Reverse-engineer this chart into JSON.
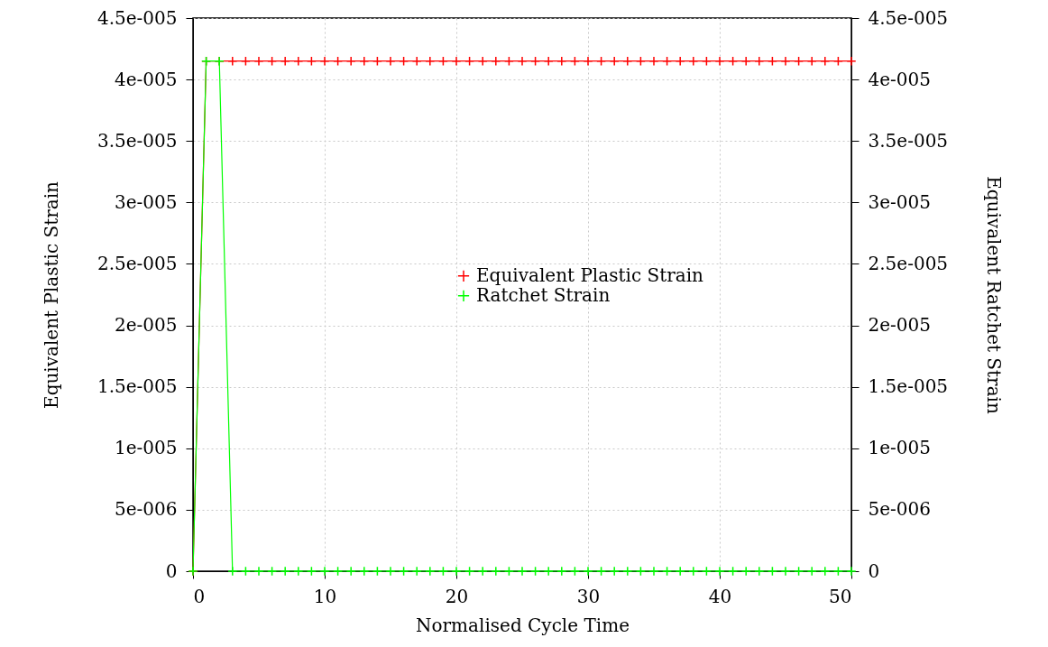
{
  "chart_data": {
    "type": "line",
    "xlabel": "Normalised Cycle Time",
    "ylabel": "Equivalent Plastic Strain",
    "y2label": "Equivalent Ratchet Strain",
    "x": [
      0,
      1,
      2,
      3,
      4,
      5,
      6,
      7,
      8,
      9,
      10,
      11,
      12,
      13,
      14,
      15,
      16,
      17,
      18,
      19,
      20,
      21,
      22,
      23,
      24,
      25,
      26,
      27,
      28,
      29,
      30,
      31,
      32,
      33,
      34,
      35,
      36,
      37,
      38,
      39,
      40,
      41,
      42,
      43,
      44,
      45,
      46,
      47,
      48,
      49,
      50
    ],
    "series": [
      {
        "name": "Equivalent Plastic Strain",
        "color": "#ff0000",
        "marker": "cross",
        "values": [
          0,
          4.15e-05,
          4.15e-05,
          4.15e-05,
          4.15e-05,
          4.15e-05,
          4.15e-05,
          4.15e-05,
          4.15e-05,
          4.15e-05,
          4.15e-05,
          4.15e-05,
          4.15e-05,
          4.15e-05,
          4.15e-05,
          4.15e-05,
          4.15e-05,
          4.15e-05,
          4.15e-05,
          4.15e-05,
          4.15e-05,
          4.15e-05,
          4.15e-05,
          4.15e-05,
          4.15e-05,
          4.15e-05,
          4.15e-05,
          4.15e-05,
          4.15e-05,
          4.15e-05,
          4.15e-05,
          4.15e-05,
          4.15e-05,
          4.15e-05,
          4.15e-05,
          4.15e-05,
          4.15e-05,
          4.15e-05,
          4.15e-05,
          4.15e-05,
          4.15e-05,
          4.15e-05,
          4.15e-05,
          4.15e-05,
          4.15e-05,
          4.15e-05,
          4.15e-05,
          4.15e-05,
          4.15e-05,
          4.15e-05,
          4.15e-05
        ]
      },
      {
        "name": "Ratchet Strain",
        "color": "#00ff00",
        "marker": "cross",
        "axis": "y2",
        "values": [
          0,
          4.15e-05,
          4.15e-05,
          0,
          0,
          0,
          0,
          0,
          0,
          0,
          0,
          0,
          0,
          0,
          0,
          0,
          0,
          0,
          0,
          0,
          0,
          0,
          0,
          0,
          0,
          0,
          0,
          0,
          0,
          0,
          0,
          0,
          0,
          0,
          0,
          0,
          0,
          0,
          0,
          0,
          0,
          0,
          0,
          0,
          0,
          0,
          0,
          0,
          0,
          0,
          0
        ]
      }
    ],
    "xlim": [
      0,
      50
    ],
    "xticks": [
      0,
      10,
      20,
      30,
      40,
      50
    ],
    "ylim": [
      0,
      4.5e-05
    ],
    "yticks": [
      0,
      {
        "value": 5e-06,
        "label": "5e-006"
      },
      {
        "value": 1e-05,
        "label": "1e-005"
      },
      {
        "value": 1.5e-05,
        "label": "1.5e-005"
      },
      {
        "value": 2e-05,
        "label": "2e-005"
      },
      {
        "value": 2.5e-05,
        "label": "2.5e-005"
      },
      {
        "value": 3e-05,
        "label": "3e-005"
      },
      {
        "value": 3.5e-05,
        "label": "3.5e-005"
      },
      {
        "value": 4e-05,
        "label": "4e-005"
      },
      {
        "value": 4.5e-05,
        "label": "4.5e-005"
      }
    ],
    "y2lim": [
      0,
      4.5e-05
    ],
    "y2ticks": [
      0,
      {
        "value": 5e-06,
        "label": "5e-006"
      },
      {
        "value": 1e-05,
        "label": "1e-005"
      },
      {
        "value": 1.5e-05,
        "label": "1.5e-005"
      },
      {
        "value": 2e-05,
        "label": "2e-005"
      },
      {
        "value": 2.5e-05,
        "label": "2.5e-005"
      },
      {
        "value": 3e-05,
        "label": "3e-005"
      },
      {
        "value": 3.5e-05,
        "label": "3.5e-005"
      },
      {
        "value": 4e-05,
        "label": "4e-005"
      },
      {
        "value": 4.5e-05,
        "label": "4.5e-005"
      }
    ],
    "grid": true,
    "legend": "right"
  }
}
